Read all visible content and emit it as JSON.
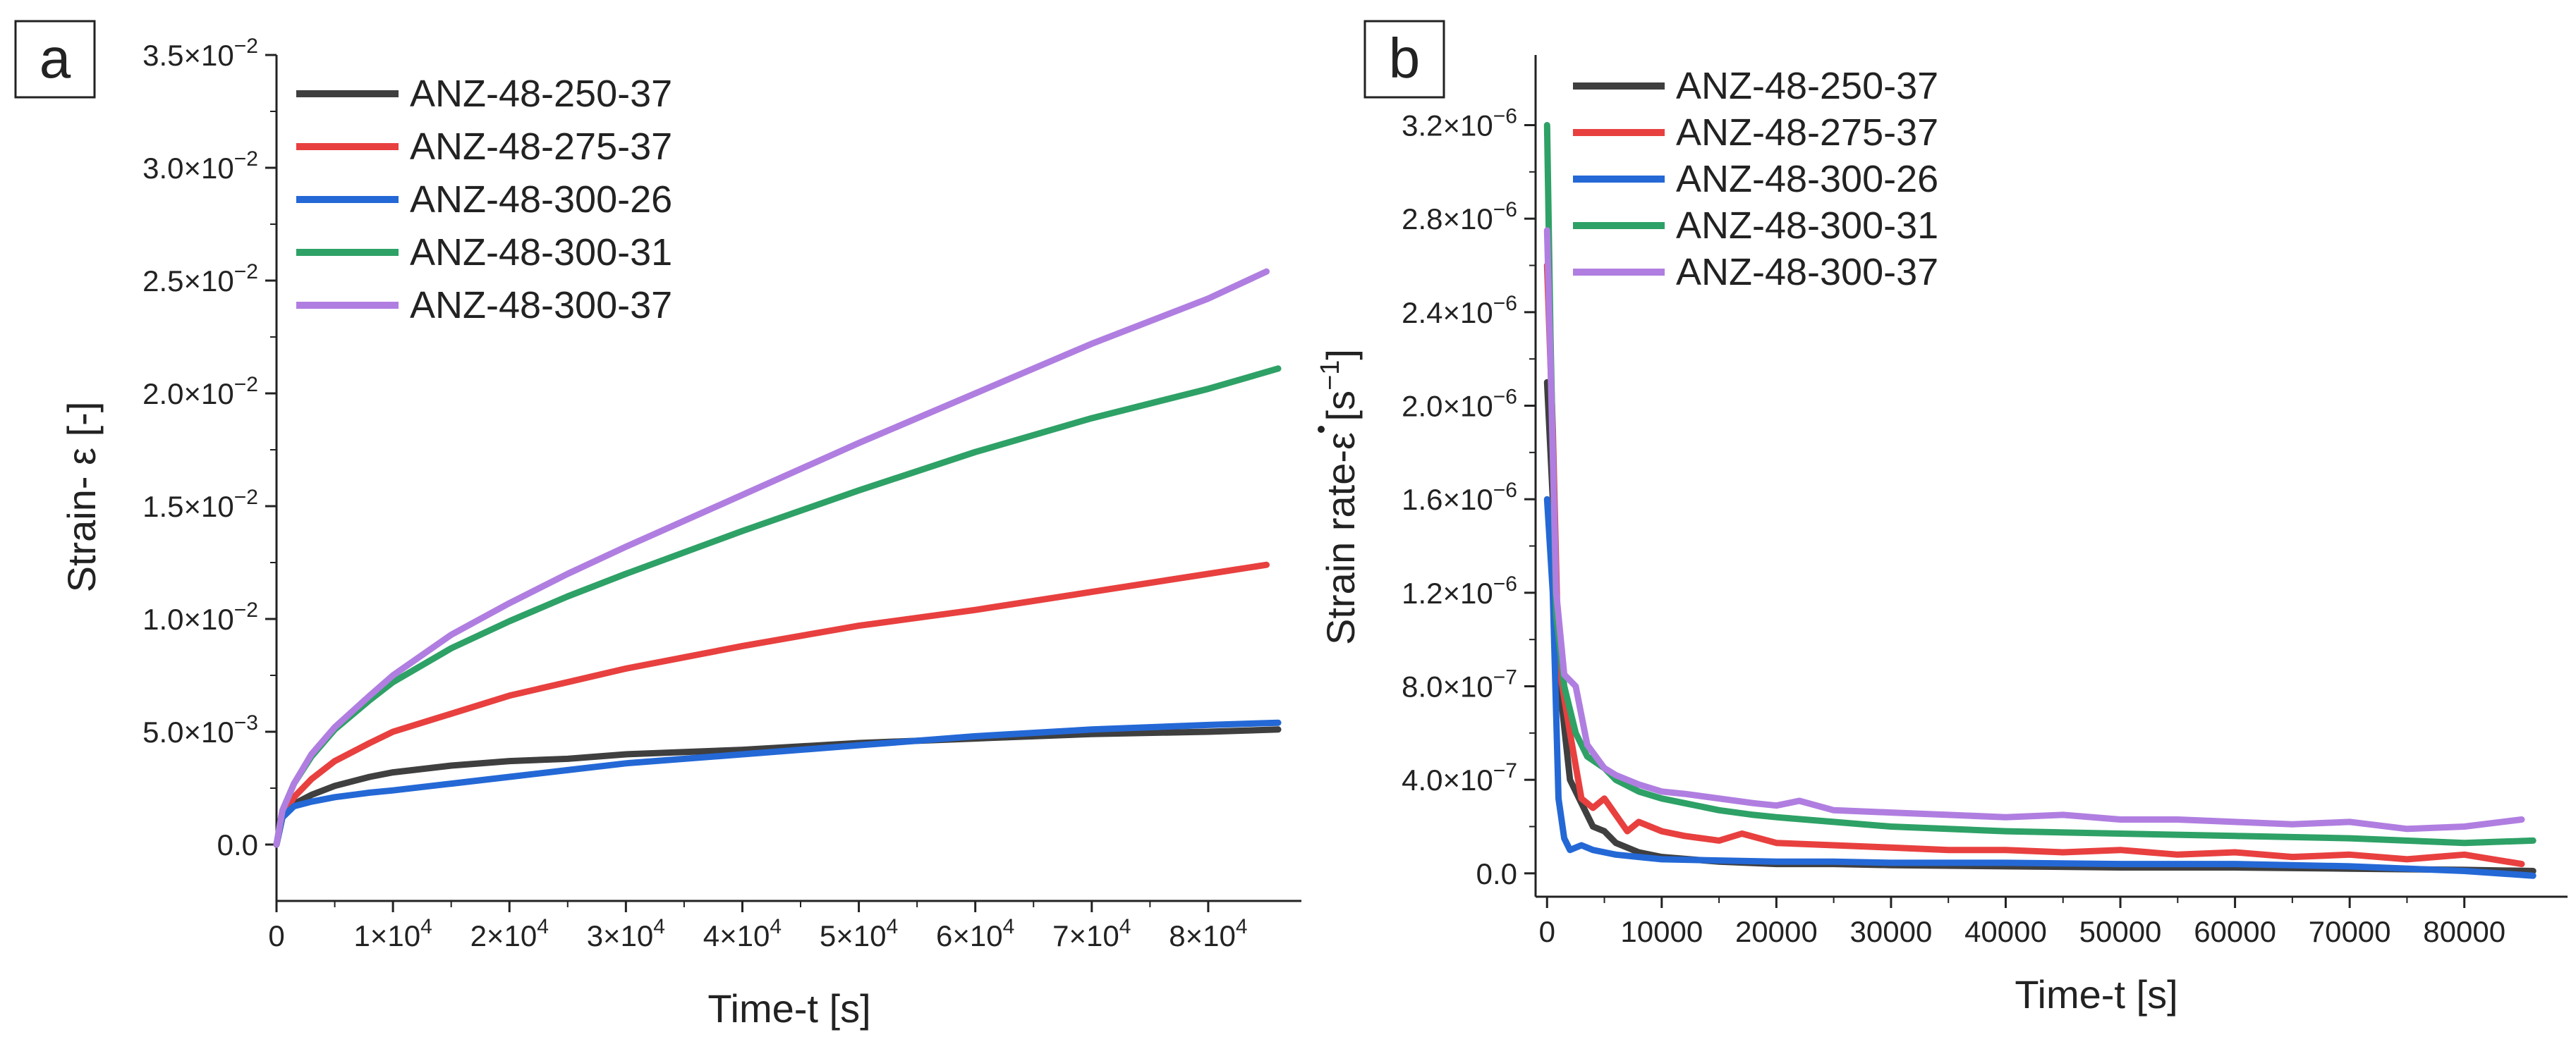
{
  "colors": {
    "ANZ-48-250-37": "#3f3f3f",
    "ANZ-48-275-37": "#e8403f",
    "ANZ-48-300-26": "#2468d6",
    "ANZ-48-300-31": "#2ea166",
    "ANZ-48-300-37": "#b07ee0",
    "axis": "#222222"
  },
  "chart_data": [
    {
      "type": "line",
      "panel_label": "a",
      "xlabel": "Time-t [s]",
      "ylabel": "Strain- ε [-]",
      "xlim": [
        0,
        88000
      ],
      "ylim": [
        -0.0025,
        0.035
      ],
      "xticks": [
        0,
        10000,
        20000,
        30000,
        40000,
        50000,
        60000,
        70000,
        80000
      ],
      "xtick_labels": [
        {
          "base": "0",
          "exp": ""
        },
        {
          "base": "1×10",
          "exp": "4"
        },
        {
          "base": "2×10",
          "exp": "4"
        },
        {
          "base": "3×10",
          "exp": "4"
        },
        {
          "base": "4×10",
          "exp": "4"
        },
        {
          "base": "5×10",
          "exp": "4"
        },
        {
          "base": "6×10",
          "exp": "4"
        },
        {
          "base": "7×10",
          "exp": "4"
        },
        {
          "base": "8×10",
          "exp": "4"
        }
      ],
      "yticks": [
        0,
        0.005,
        0.01,
        0.015,
        0.02,
        0.025,
        0.03,
        0.035
      ],
      "ytick_labels": [
        {
          "base": "0.0",
          "exp": ""
        },
        {
          "base": "5.0×10",
          "exp": "−3"
        },
        {
          "base": "1.0×10",
          "exp": "−2"
        },
        {
          "base": "1.5×10",
          "exp": "−2"
        },
        {
          "base": "2.0×10",
          "exp": "−2"
        },
        {
          "base": "2.5×10",
          "exp": "−2"
        },
        {
          "base": "3.0×10",
          "exp": "−2"
        },
        {
          "base": "3.5×10",
          "exp": "−2"
        }
      ],
      "legend_position": "top-left",
      "series": [
        {
          "name": "ANZ-48-250-37",
          "x": [
            0,
            500,
            1500,
            3000,
            5000,
            8000,
            10000,
            15000,
            20000,
            25000,
            30000,
            40000,
            50000,
            60000,
            70000,
            80000,
            86000
          ],
          "y": [
            0,
            0.0012,
            0.0018,
            0.0022,
            0.0026,
            0.003,
            0.0032,
            0.0035,
            0.0037,
            0.0038,
            0.004,
            0.0042,
            0.0045,
            0.0047,
            0.0049,
            0.005,
            0.0051
          ]
        },
        {
          "name": "ANZ-48-275-37",
          "x": [
            0,
            500,
            1500,
            3000,
            5000,
            8000,
            10000,
            15000,
            20000,
            25000,
            30000,
            40000,
            50000,
            60000,
            70000,
            80000,
            85000
          ],
          "y": [
            0,
            0.0013,
            0.0021,
            0.0029,
            0.0037,
            0.0045,
            0.005,
            0.0058,
            0.0066,
            0.0072,
            0.0078,
            0.0088,
            0.0097,
            0.0104,
            0.0112,
            0.012,
            0.0124
          ]
        },
        {
          "name": "ANZ-48-300-26",
          "x": [
            0,
            500,
            1500,
            3000,
            5000,
            8000,
            10000,
            15000,
            20000,
            25000,
            30000,
            40000,
            50000,
            60000,
            70000,
            80000,
            86000
          ],
          "y": [
            0,
            0.0012,
            0.0017,
            0.0019,
            0.0021,
            0.0023,
            0.0024,
            0.0027,
            0.003,
            0.0033,
            0.0036,
            0.004,
            0.0044,
            0.0048,
            0.0051,
            0.0053,
            0.0054
          ]
        },
        {
          "name": "ANZ-48-300-31",
          "x": [
            0,
            500,
            1500,
            3000,
            5000,
            8000,
            10000,
            15000,
            20000,
            25000,
            30000,
            40000,
            50000,
            60000,
            70000,
            80000,
            86000
          ],
          "y": [
            0,
            0.0015,
            0.0027,
            0.0039,
            0.0051,
            0.0064,
            0.0072,
            0.0087,
            0.0099,
            0.011,
            0.012,
            0.0139,
            0.0157,
            0.0174,
            0.0189,
            0.0202,
            0.0211
          ]
        },
        {
          "name": "ANZ-48-300-37",
          "x": [
            0,
            500,
            1500,
            3000,
            5000,
            8000,
            10000,
            15000,
            20000,
            25000,
            30000,
            40000,
            50000,
            60000,
            70000,
            80000,
            85000
          ],
          "y": [
            0,
            0.0015,
            0.0027,
            0.004,
            0.0052,
            0.0066,
            0.0075,
            0.0093,
            0.0107,
            0.012,
            0.0132,
            0.0155,
            0.0178,
            0.02,
            0.0222,
            0.0242,
            0.0254
          ]
        }
      ]
    },
    {
      "type": "line",
      "panel_label": "b",
      "xlabel": "Time-t [s]",
      "ylabel": "Strain rate-ε̇ [s⁻¹]",
      "ylabel_parts": {
        "prefix": "Strain rate-",
        "symbol": "ε",
        "unit_open": " [s",
        "unit_exp": "−1",
        "unit_close": "]"
      },
      "xlim": [
        -1000,
        89000
      ],
      "ylim": [
        -1e-07,
        3.5e-06
      ],
      "xticks": [
        0,
        10000,
        20000,
        30000,
        40000,
        50000,
        60000,
        70000,
        80000
      ],
      "xtick_labels": [
        {
          "base": "0",
          "exp": ""
        },
        {
          "base": "10000",
          "exp": ""
        },
        {
          "base": "20000",
          "exp": ""
        },
        {
          "base": "30000",
          "exp": ""
        },
        {
          "base": "40000",
          "exp": ""
        },
        {
          "base": "50000",
          "exp": ""
        },
        {
          "base": "60000",
          "exp": ""
        },
        {
          "base": "70000",
          "exp": ""
        },
        {
          "base": "80000",
          "exp": ""
        }
      ],
      "yticks": [
        0,
        4e-07,
        8e-07,
        1.2e-06,
        1.6e-06,
        2e-06,
        2.4e-06,
        2.8e-06,
        3.2e-06
      ],
      "ytick_labels": [
        {
          "base": "0.0",
          "exp": ""
        },
        {
          "base": "4.0×10",
          "exp": "−7"
        },
        {
          "base": "8.0×10",
          "exp": "−7"
        },
        {
          "base": "1.2×10",
          "exp": "−6"
        },
        {
          "base": "1.6×10",
          "exp": "−6"
        },
        {
          "base": "2.0×10",
          "exp": "−6"
        },
        {
          "base": "2.4×10",
          "exp": "−6"
        },
        {
          "base": "2.8×10",
          "exp": "−6"
        },
        {
          "base": "3.2×10",
          "exp": "−6"
        }
      ],
      "legend_position": "top-left",
      "series": [
        {
          "name": "ANZ-48-250-37",
          "x": [
            0,
            500,
            1000,
            2000,
            3000,
            4000,
            5000,
            6000,
            8000,
            10000,
            15000,
            20000,
            25000,
            30000,
            40000,
            50000,
            60000,
            70000,
            80000,
            86000
          ],
          "y": [
            2.1e-06,
            1.6e-06,
            8.5e-07,
            4e-07,
            3e-07,
            2e-07,
            1.8e-07,
            1.3e-07,
            9e-08,
            7e-08,
            5e-08,
            4e-08,
            4e-08,
            3.5e-08,
            3e-08,
            2.5e-08,
            2.5e-08,
            2e-08,
            1.5e-08,
            1e-08
          ]
        },
        {
          "name": "ANZ-48-275-37",
          "x": [
            0,
            500,
            1000,
            2000,
            3000,
            4000,
            5000,
            6000,
            7000,
            8000,
            10000,
            12000,
            15000,
            17000,
            20000,
            25000,
            30000,
            35000,
            40000,
            45000,
            50000,
            55000,
            60000,
            65000,
            70000,
            75000,
            80000,
            85000
          ],
          "y": [
            2.6e-06,
            1.9e-06,
            9e-07,
            6e-07,
            3.2e-07,
            2.8e-07,
            3.2e-07,
            2.5e-07,
            1.8e-07,
            2.2e-07,
            1.8e-07,
            1.6e-07,
            1.4e-07,
            1.7e-07,
            1.3e-07,
            1.2e-07,
            1.1e-07,
            1e-07,
            1e-07,
            9e-08,
            1e-07,
            8e-08,
            9e-08,
            7e-08,
            8e-08,
            6e-08,
            8e-08,
            4e-08
          ]
        },
        {
          "name": "ANZ-48-300-26",
          "x": [
            0,
            500,
            1000,
            1500,
            2000,
            3000,
            4000,
            5000,
            6000,
            8000,
            10000,
            15000,
            20000,
            25000,
            30000,
            40000,
            50000,
            60000,
            70000,
            80000,
            86000
          ],
          "y": [
            1.6e-06,
            1.2e-06,
            3.2e-07,
            1.5e-07,
            1e-07,
            1.2e-07,
            1e-07,
            9e-08,
            8e-08,
            7e-08,
            6e-08,
            5.5e-08,
            5e-08,
            5e-08,
            4.5e-08,
            4.5e-08,
            4e-08,
            4e-08,
            3e-08,
            1e-08,
            -1e-08
          ]
        },
        {
          "name": "ANZ-48-300-31",
          "x": [
            0,
            300,
            800,
            1500,
            2500,
            3500,
            5000,
            6000,
            8000,
            10000,
            12000,
            15000,
            18000,
            20000,
            25000,
            30000,
            40000,
            50000,
            60000,
            70000,
            80000,
            86000
          ],
          "y": [
            3.2e-06,
            2.3e-06,
            1.1e-06,
            8e-07,
            6e-07,
            5e-07,
            4.5e-07,
            4e-07,
            3.5e-07,
            3.2e-07,
            3e-07,
            2.7e-07,
            2.5e-07,
            2.4e-07,
            2.2e-07,
            2e-07,
            1.8e-07,
            1.7e-07,
            1.6e-07,
            1.5e-07,
            1.3e-07,
            1.4e-07
          ]
        },
        {
          "name": "ANZ-48-300-37",
          "x": [
            0,
            300,
            800,
            1500,
            2500,
            3500,
            5000,
            6000,
            8000,
            10000,
            12000,
            15000,
            18000,
            20000,
            22000,
            25000,
            30000,
            35000,
            40000,
            45000,
            50000,
            55000,
            60000,
            65000,
            70000,
            75000,
            80000,
            85000
          ],
          "y": [
            2.75e-06,
            2.2e-06,
            1.2e-06,
            8.5e-07,
            8e-07,
            5.5e-07,
            4.5e-07,
            4.2e-07,
            3.8e-07,
            3.5e-07,
            3.4e-07,
            3.2e-07,
            3e-07,
            2.9e-07,
            3.1e-07,
            2.7e-07,
            2.6e-07,
            2.5e-07,
            2.4e-07,
            2.5e-07,
            2.3e-07,
            2.3e-07,
            2.2e-07,
            2.1e-07,
            2.2e-07,
            1.9e-07,
            2e-07,
            2.3e-07
          ]
        }
      ]
    }
  ]
}
